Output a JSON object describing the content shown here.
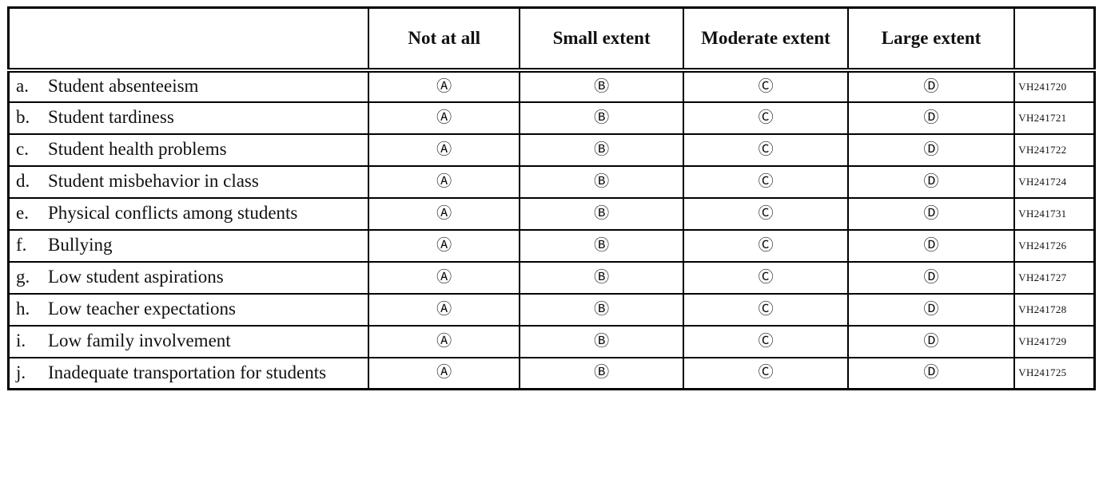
{
  "table": {
    "headers": [
      "Not at all",
      "Small extent",
      "Moderate extent",
      "Large extent"
    ],
    "options": [
      "Ⓐ",
      "Ⓑ",
      "Ⓒ",
      "Ⓓ"
    ],
    "option_values": [
      "A",
      "B",
      "C",
      "D"
    ],
    "rows": [
      {
        "letter": "a.",
        "text": "Student absenteeism",
        "code": "VH241720"
      },
      {
        "letter": "b.",
        "text": "Student tardiness",
        "code": "VH241721"
      },
      {
        "letter": "c.",
        "text": "Student health problems",
        "code": "VH241722"
      },
      {
        "letter": "d.",
        "text": "Student misbehavior in class",
        "code": "VH241724"
      },
      {
        "letter": "e.",
        "text": "Physical conflicts among students",
        "code": "VH241731"
      },
      {
        "letter": "f.",
        "text": "Bullying",
        "code": "VH241726"
      },
      {
        "letter": "g.",
        "text": "Low student aspirations",
        "code": "VH241727"
      },
      {
        "letter": "h.",
        "text": "Low teacher expectations",
        "code": "VH241728"
      },
      {
        "letter": "i.",
        "text": "Low family involvement",
        "code": "VH241729"
      },
      {
        "letter": "j.",
        "text": "Inadequate transportation for students",
        "code": "VH241725"
      }
    ]
  }
}
